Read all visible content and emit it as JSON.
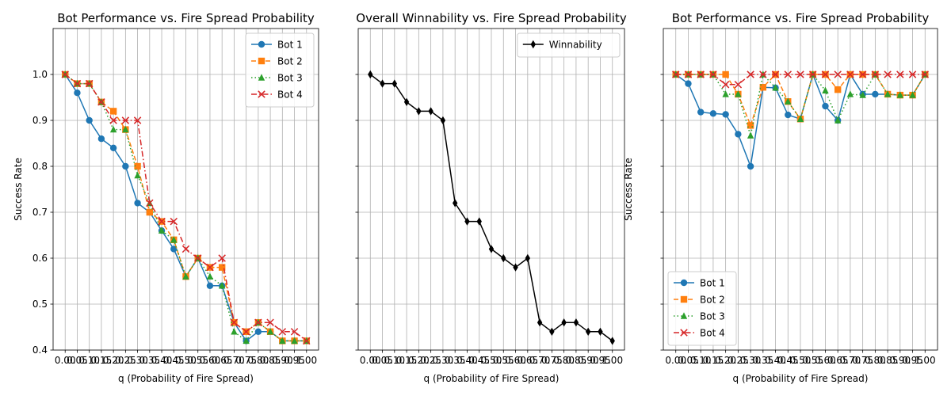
{
  "chart_data": [
    {
      "type": "line",
      "title": "Bot Performance vs. Fire Spread Probability",
      "xlabel": "q (Probability of Fire Spread)",
      "ylabel": "Success Rate",
      "x": [
        0.0,
        0.05,
        0.1,
        0.15,
        0.2,
        0.25,
        0.3,
        0.35,
        0.4,
        0.45,
        0.5,
        0.55,
        0.6,
        0.65,
        0.7,
        0.75,
        0.8,
        0.85,
        0.9,
        0.95,
        1.0
      ],
      "xtick_labels": [
        "0.00",
        "0.05",
        "0.10",
        "0.15",
        "0.20",
        "0.25",
        "0.30",
        "0.35",
        "0.40",
        "0.45",
        "0.50",
        "0.55",
        "0.60",
        "0.65",
        "0.70",
        "0.75",
        "0.80",
        "0.85",
        "0.90",
        "0.95",
        "1.00"
      ],
      "ylim": [
        0.4,
        1.1
      ],
      "yticks": [
        0.4,
        0.5,
        0.6,
        0.7,
        0.8,
        0.9,
        1.0
      ],
      "ytick_labels": [
        "0.4",
        "0.5",
        "0.6",
        "0.7",
        "0.8",
        "0.9",
        "1.0"
      ],
      "grid": true,
      "legend_position": "upper right",
      "series": [
        {
          "name": "Bot 1",
          "color": "#1f77b4",
          "marker": "circle",
          "dash": "solid",
          "values": [
            1.0,
            0.96,
            0.9,
            0.86,
            0.84,
            0.8,
            0.72,
            0.7,
            0.66,
            0.62,
            0.56,
            0.6,
            0.54,
            0.54,
            0.46,
            0.42,
            0.44,
            0.44,
            0.42,
            0.42,
            0.42
          ]
        },
        {
          "name": "Bot 2",
          "color": "#ff7f0e",
          "marker": "square",
          "dash": "dashed",
          "values": [
            1.0,
            0.98,
            0.98,
            0.94,
            0.92,
            0.88,
            0.8,
            0.7,
            0.68,
            0.64,
            0.56,
            0.6,
            0.58,
            0.58,
            0.46,
            0.44,
            0.46,
            0.44,
            0.42,
            0.42,
            0.42
          ]
        },
        {
          "name": "Bot 3",
          "color": "#2ca02c",
          "marker": "triangle",
          "dash": "dotted",
          "values": [
            1.0,
            0.98,
            0.98,
            0.94,
            0.88,
            0.88,
            0.78,
            0.72,
            0.66,
            0.64,
            0.56,
            0.6,
            0.56,
            0.54,
            0.44,
            0.42,
            0.46,
            0.44,
            0.42,
            0.42,
            0.42
          ]
        },
        {
          "name": "Bot 4",
          "color": "#d62728",
          "marker": "x",
          "dash": "dashdot",
          "values": [
            1.0,
            0.98,
            0.98,
            0.94,
            0.9,
            0.9,
            0.9,
            0.72,
            0.68,
            0.68,
            0.62,
            0.6,
            0.58,
            0.6,
            0.46,
            0.44,
            0.46,
            0.46,
            0.44,
            0.44,
            0.42
          ]
        }
      ]
    },
    {
      "type": "line",
      "title": "Overall Winnability vs. Fire Spread Probability",
      "xlabel": "q (Probability of Fire Spread)",
      "ylabel": "",
      "x": [
        0.0,
        0.05,
        0.1,
        0.15,
        0.2,
        0.25,
        0.3,
        0.35,
        0.4,
        0.45,
        0.5,
        0.55,
        0.6,
        0.65,
        0.7,
        0.75,
        0.8,
        0.85,
        0.9,
        0.95,
        1.0
      ],
      "xtick_labels": [
        "0.00",
        "0.05",
        "0.10",
        "0.15",
        "0.20",
        "0.25",
        "0.30",
        "0.35",
        "0.40",
        "0.45",
        "0.50",
        "0.55",
        "0.60",
        "0.65",
        "0.70",
        "0.75",
        "0.80",
        "0.85",
        "0.90",
        "0.95",
        "1.00"
      ],
      "ylim": [
        0.4,
        1.1
      ],
      "yticks": [
        0.4,
        0.5,
        0.6,
        0.7,
        0.8,
        0.9,
        1.0
      ],
      "ytick_labels": [],
      "grid": true,
      "legend_position": "upper right",
      "series": [
        {
          "name": "Winnability",
          "color": "#000000",
          "marker": "diamond",
          "dash": "solid",
          "values": [
            1.0,
            0.98,
            0.98,
            0.94,
            0.92,
            0.92,
            0.9,
            0.72,
            0.68,
            0.68,
            0.62,
            0.6,
            0.58,
            0.6,
            0.46,
            0.44,
            0.46,
            0.46,
            0.44,
            0.44,
            0.42
          ]
        }
      ]
    },
    {
      "type": "line",
      "title": "Bot Performance vs. Fire Spread Probability",
      "xlabel": "q (Probability of Fire Spread)",
      "ylabel": "Success Rate",
      "x": [
        0.0,
        0.05,
        0.1,
        0.15,
        0.2,
        0.25,
        0.3,
        0.35,
        0.4,
        0.45,
        0.5,
        0.55,
        0.6,
        0.65,
        0.7,
        0.75,
        0.8,
        0.85,
        0.9,
        0.95,
        1.0
      ],
      "xtick_labels": [
        "0.00",
        "0.05",
        "0.10",
        "0.15",
        "0.20",
        "0.25",
        "0.30",
        "0.35",
        "0.40",
        "0.45",
        "0.50",
        "0.55",
        "0.60",
        "0.65",
        "0.70",
        "0.75",
        "0.80",
        "0.85",
        "0.90",
        "0.95",
        "1.00"
      ],
      "ylim": [
        0.4,
        1.1
      ],
      "yticks": [
        0.4,
        0.5,
        0.6,
        0.7,
        0.8,
        0.9,
        1.0
      ],
      "ytick_labels": [],
      "grid": true,
      "legend_position": "lower left",
      "series": [
        {
          "name": "Bot 1",
          "color": "#1f77b4",
          "marker": "circle",
          "dash": "solid",
          "values": [
            1.0,
            0.98,
            0.918,
            0.915,
            0.913,
            0.87,
            0.8,
            0.972,
            0.971,
            0.912,
            0.903,
            1.0,
            0.931,
            0.9,
            1.0,
            0.957,
            0.957,
            0.957,
            0.955,
            0.955,
            1.0
          ]
        },
        {
          "name": "Bot 2",
          "color": "#ff7f0e",
          "marker": "square",
          "dash": "dashed",
          "values": [
            1.0,
            1.0,
            1.0,
            1.0,
            1.0,
            0.957,
            0.889,
            0.972,
            1.0,
            0.941,
            0.903,
            1.0,
            1.0,
            0.967,
            1.0,
            1.0,
            1.0,
            0.957,
            0.955,
            0.955,
            1.0
          ]
        },
        {
          "name": "Bot 3",
          "color": "#2ca02c",
          "marker": "triangle",
          "dash": "dotted",
          "values": [
            1.0,
            1.0,
            1.0,
            1.0,
            0.957,
            0.957,
            0.867,
            1.0,
            0.971,
            0.941,
            0.903,
            1.0,
            0.965,
            0.9,
            0.957,
            0.955,
            1.0,
            0.957,
            0.955,
            0.955,
            1.0
          ]
        },
        {
          "name": "Bot 4",
          "color": "#d62728",
          "marker": "x",
          "dash": "dashdot",
          "values": [
            1.0,
            1.0,
            1.0,
            1.0,
            0.978,
            0.978,
            1.0,
            1.0,
            1.0,
            1.0,
            1.0,
            1.0,
            1.0,
            1.0,
            1.0,
            1.0,
            1.0,
            1.0,
            1.0,
            1.0,
            1.0
          ]
        }
      ]
    }
  ]
}
